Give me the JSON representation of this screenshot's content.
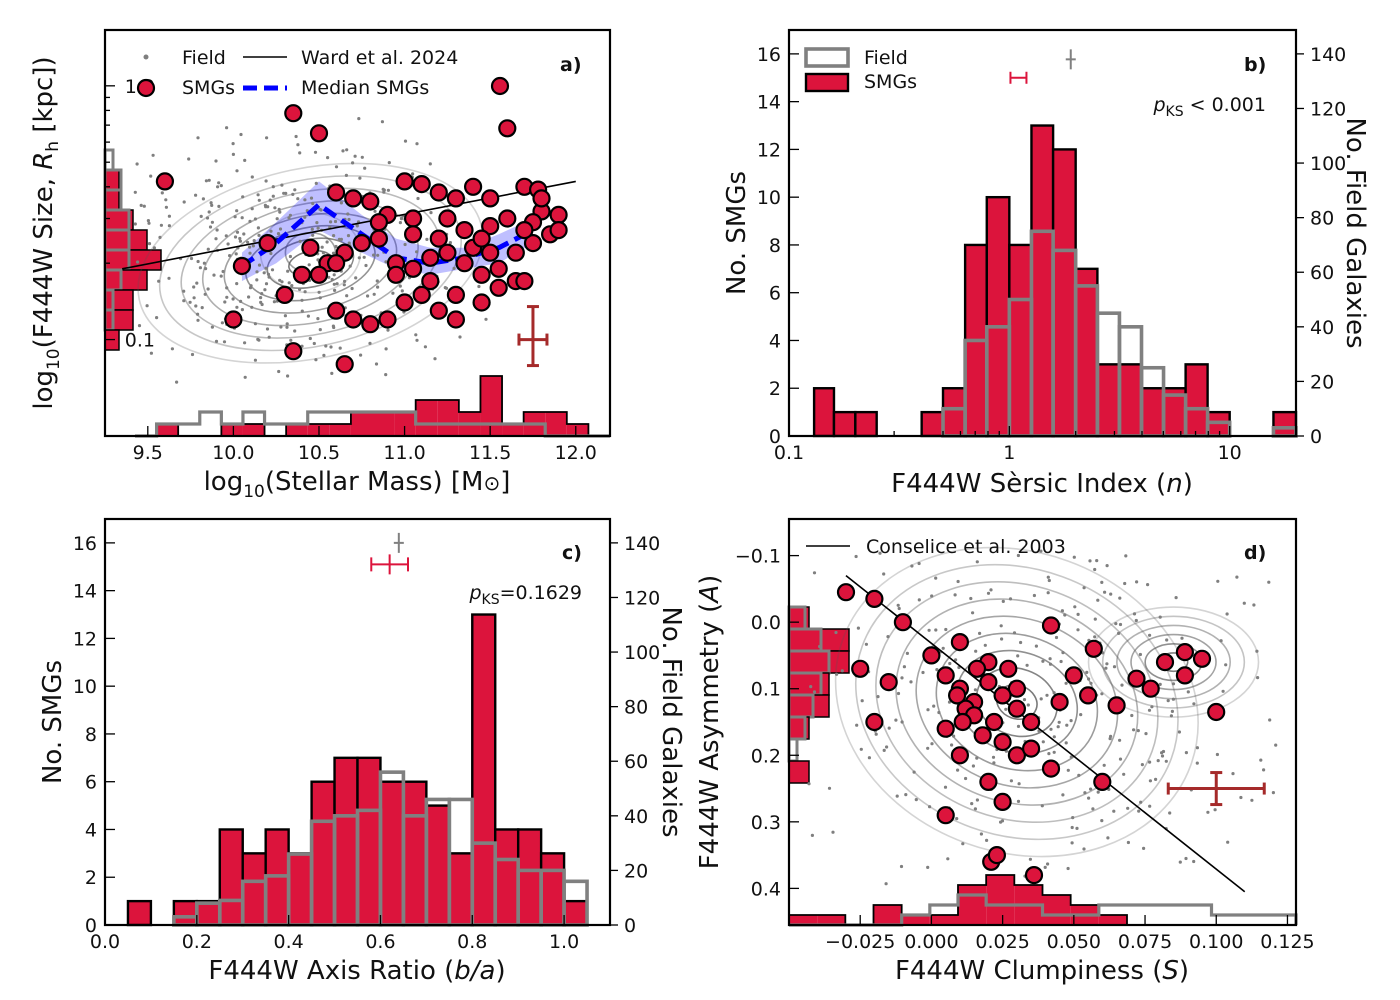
{
  "colors": {
    "smg": "#dc143c",
    "field": "#808080",
    "median": "#0000ff",
    "errbar": "#a52a2a"
  },
  "legend": {
    "field": "Field",
    "smgs": "SMGs",
    "ward": "Ward et al. 2024",
    "median": "Median SMGs",
    "conselice": "Conselice et al. 2003"
  },
  "panels": {
    "a": {
      "id": "a)",
      "xlabel": "log",
      "xlabel_sub": "10",
      "xlabel_rest": "(Stellar Mass) [M",
      "xlabel_end": "]",
      "ylabel": "log",
      "ylabel_sub": "10",
      "ylabel_rest": "(F444W Size, ",
      "ylabel_var": "R",
      "ylabel_var_sub": "h",
      "ylabel_end": " [kpc])",
      "xticks": [
        "9.5",
        "10.0",
        "10.5",
        "11.0",
        "11.5",
        "12.0"
      ],
      "yticks": [
        "0.1",
        "1.0"
      ]
    },
    "b": {
      "id": "b)",
      "xlabel": "F444W Sèrsic Index (",
      "xlabel_var": "n",
      "xlabel_end": ")",
      "ylabel_left": "No. SMGs",
      "ylabel_right": "No. Field Galaxies",
      "pks_p": "p",
      "pks_sub": "KS",
      "pks_val": " < 0.001",
      "xticks": [
        "0.1",
        "1",
        "10"
      ],
      "yticks_left": [
        "0",
        "2",
        "4",
        "6",
        "8",
        "10",
        "12",
        "14",
        "16"
      ],
      "yticks_right": [
        "0",
        "20",
        "40",
        "60",
        "80",
        "100",
        "120",
        "140"
      ]
    },
    "c": {
      "id": "c)",
      "xlabel": "F444W Axis Ratio (",
      "xlabel_var": "b/a",
      "xlabel_end": ")",
      "ylabel_left": "No. SMGs",
      "ylabel_right": "No. Field Galaxies",
      "pks_p": "p",
      "pks_sub": "KS",
      "pks_val": "=0.1629",
      "xticks": [
        "0.0",
        "0.2",
        "0.4",
        "0.6",
        "0.8",
        "1.0"
      ],
      "yticks_left": [
        "0",
        "2",
        "4",
        "6",
        "8",
        "10",
        "12",
        "14",
        "16"
      ],
      "yticks_right": [
        "0",
        "20",
        "40",
        "60",
        "80",
        "100",
        "120",
        "140"
      ]
    },
    "d": {
      "id": "d)",
      "xlabel": "F444W Clumpiness (",
      "xlabel_var": "S",
      "xlabel_end": ")",
      "ylabel": "F444W Asymmetry (",
      "ylabel_var": "A",
      "ylabel_end": ")",
      "xticks": [
        "−0.025",
        "0.000",
        "0.025",
        "0.050",
        "0.075",
        "0.100",
        "0.125"
      ],
      "yticks": [
        "−0.1",
        "0.0",
        "0.1",
        "0.2",
        "0.3",
        "0.4"
      ]
    }
  },
  "chart_data": [
    {
      "panel": "a",
      "type": "scatter",
      "title": "",
      "xlabel": "log10(Stellar Mass) [M⊙]",
      "ylabel": "log10(F444W Size, Rh [kpc])",
      "xlim": [
        9.25,
        12.2
      ],
      "ylim_log10": [
        -1.38,
        0.22
      ],
      "yscale": "log",
      "smgs": [
        [
          10.05,
          0.195
        ],
        [
          10.35,
          0.78
        ],
        [
          10.5,
          0.65
        ],
        [
          10.6,
          0.38
        ],
        [
          10.7,
          0.36
        ],
        [
          10.8,
          0.35
        ],
        [
          10.9,
          0.31
        ],
        [
          11.0,
          0.42
        ],
        [
          11.1,
          0.41
        ],
        [
          11.2,
          0.38
        ],
        [
          11.3,
          0.36
        ],
        [
          11.4,
          0.4
        ],
        [
          11.5,
          0.36
        ],
        [
          11.6,
          0.68
        ],
        [
          11.7,
          0.4
        ],
        [
          11.8,
          0.32
        ],
        [
          11.9,
          0.31
        ],
        [
          10.45,
          0.23
        ],
        [
          10.55,
          0.2
        ],
        [
          10.65,
          0.22
        ],
        [
          10.75,
          0.24
        ],
        [
          10.85,
          0.25
        ],
        [
          10.95,
          0.2
        ],
        [
          11.05,
          0.19
        ],
        [
          11.15,
          0.21
        ],
        [
          11.25,
          0.22
        ],
        [
          11.35,
          0.2
        ],
        [
          11.45,
          0.18
        ],
        [
          11.55,
          0.19
        ],
        [
          11.65,
          0.17
        ],
        [
          11.75,
          0.24
        ],
        [
          11.85,
          0.26
        ],
        [
          10.3,
          0.15
        ],
        [
          10.6,
          0.13
        ],
        [
          10.7,
          0.12
        ],
        [
          10.8,
          0.115
        ],
        [
          10.9,
          0.12
        ],
        [
          11.0,
          0.14
        ],
        [
          11.1,
          0.15
        ],
        [
          11.2,
          0.13
        ],
        [
          11.3,
          0.12
        ],
        [
          11.45,
          0.14
        ],
        [
          11.55,
          0.16
        ],
        [
          11.7,
          0.17
        ],
        [
          10.35,
          0.09
        ],
        [
          10.65,
          0.08
        ],
        [
          9.6,
          0.42
        ],
        [
          10.0,
          0.12
        ],
        [
          10.2,
          0.24
        ],
        [
          10.4,
          0.18
        ],
        [
          10.5,
          0.18
        ],
        [
          10.6,
          0.2
        ],
        [
          10.85,
          0.29
        ],
        [
          11.05,
          0.3
        ],
        [
          11.25,
          0.3
        ],
        [
          11.35,
          0.27
        ],
        [
          11.5,
          0.28
        ],
        [
          11.6,
          0.3
        ],
        [
          11.75,
          0.29
        ],
        [
          11.78,
          0.39
        ],
        [
          11.8,
          0.36
        ],
        [
          11.3,
          0.15
        ],
        [
          11.15,
          0.17
        ],
        [
          10.95,
          0.18
        ],
        [
          11.05,
          0.26
        ],
        [
          11.2,
          0.25
        ],
        [
          11.4,
          0.23
        ],
        [
          11.45,
          0.25
        ],
        [
          11.5,
          0.22
        ],
        [
          11.65,
          0.22
        ],
        [
          11.7,
          0.27
        ],
        [
          11.9,
          0.27
        ]
      ],
      "field_points": [
        [
          10.1,
          0.24
        ],
        [
          10.3,
          0.3
        ],
        [
          10.5,
          0.2
        ],
        [
          10.7,
          0.25
        ],
        [
          10.9,
          0.22
        ],
        [
          11.1,
          0.2
        ],
        [
          10.2,
          0.18
        ],
        [
          10.4,
          0.15
        ],
        [
          10.6,
          0.28
        ],
        [
          10.8,
          0.18
        ]
      ],
      "ward_line": {
        "x": [
          9.35,
          12.0
        ],
        "y": [
          0.19,
          0.42
        ]
      },
      "median_smgs": {
        "x": [
          10.05,
          10.25,
          10.5,
          10.75,
          10.95,
          11.15,
          11.35,
          11.55,
          11.75
        ],
        "y": [
          0.195,
          0.24,
          0.34,
          0.26,
          0.21,
          0.2,
          0.21,
          0.23,
          0.27
        ],
        "lo": [
          0.17,
          0.2,
          0.27,
          0.22,
          0.19,
          0.18,
          0.19,
          0.2,
          0.24
        ],
        "hi": [
          0.22,
          0.29,
          0.42,
          0.31,
          0.25,
          0.23,
          0.23,
          0.26,
          0.3
        ]
      },
      "error_bar": {
        "x": 11.75,
        "y": 0.1
      },
      "x_hist_smg_counts": [
        0,
        1,
        0,
        0,
        1,
        1,
        0,
        1,
        1,
        1,
        2,
        2,
        2,
        3,
        3,
        2,
        5,
        1,
        2,
        2,
        1,
        0
      ],
      "x_hist_field_counts": [
        0,
        1,
        1,
        2,
        1,
        2,
        1,
        1,
        2,
        2,
        2,
        2,
        2,
        1,
        1,
        1,
        1,
        1,
        1,
        0,
        0,
        0
      ],
      "y_hist_smg_counts": [
        0,
        1,
        1,
        2,
        3,
        4,
        3,
        2,
        2,
        1,
        0
      ],
      "y_hist_field_counts": [
        1,
        2,
        2,
        3,
        3,
        3,
        2,
        1,
        1,
        0,
        0
      ]
    },
    {
      "panel": "b",
      "type": "bar",
      "title": "",
      "xlabel": "F444W Sèrsic Index (n)",
      "xscale": "log",
      "xlim": [
        0.1,
        20
      ],
      "ylim_left": [
        0,
        17
      ],
      "ylim_right": [
        0,
        148.75
      ],
      "bin_edges": [
        0.13,
        0.16,
        0.2,
        0.25,
        0.32,
        0.4,
        0.5,
        0.63,
        0.79,
        1.0,
        1.26,
        1.58,
        2.0,
        2.51,
        3.16,
        3.98,
        5.01,
        6.31,
        7.94,
        10.0,
        12.6,
        15.8,
        20.0
      ],
      "smgs_counts": [
        2,
        1,
        1,
        0,
        0,
        1,
        2,
        8,
        10,
        8,
        13,
        12,
        7,
        3,
        3,
        2,
        2,
        3,
        1,
        0,
        0,
        1
      ],
      "field_counts": [
        0,
        0,
        0,
        0,
        0,
        0,
        10,
        35,
        40,
        50,
        75,
        68,
        55,
        45,
        40,
        25,
        15,
        10,
        5,
        0,
        0,
        3
      ],
      "smg_error": {
        "x": 1.1,
        "y": 15,
        "xerr": 0.12
      },
      "field_error": {
        "x": 1.9,
        "y": 138,
        "yerr": 4
      }
    },
    {
      "panel": "c",
      "type": "bar",
      "title": "",
      "xlabel": "F444W Axis Ratio (b/a)",
      "xlim": [
        0,
        1.1
      ],
      "ylim_left": [
        0,
        17
      ],
      "ylim_right": [
        0,
        148.75
      ],
      "bin_edges": [
        0.0,
        0.05,
        0.1,
        0.15,
        0.2,
        0.25,
        0.3,
        0.35,
        0.4,
        0.45,
        0.5,
        0.55,
        0.6,
        0.65,
        0.7,
        0.75,
        0.8,
        0.85,
        0.9,
        0.95,
        1.0,
        1.05
      ],
      "smgs_counts": [
        0,
        1,
        0,
        1,
        1,
        4,
        3,
        4,
        3,
        6,
        7,
        7,
        6,
        6,
        5,
        3,
        13,
        4,
        4,
        3,
        1
      ],
      "field_counts": [
        0,
        0,
        0,
        3,
        8,
        9,
        16,
        18,
        26,
        38,
        40,
        42,
        56,
        40,
        46,
        46,
        30,
        24,
        20,
        20,
        16
      ],
      "smg_error": {
        "x": 0.62,
        "y": 15.1,
        "xerr": 0.04
      },
      "field_error": {
        "x": 0.64,
        "y": 140,
        "yerr": 3
      }
    },
    {
      "panel": "d",
      "type": "scatter",
      "title": "",
      "xlabel": "F444W Clumpiness (S)",
      "ylabel": "F444W Asymmetry (A)",
      "xlim": [
        -0.05,
        0.128
      ],
      "ylim": [
        0.455,
        -0.155
      ],
      "y_inverted": true,
      "smgs": [
        [
          -0.03,
          -0.045
        ],
        [
          -0.02,
          -0.035
        ],
        [
          -0.01,
          0.0
        ],
        [
          0.0,
          0.05
        ],
        [
          0.01,
          0.03
        ],
        [
          0.02,
          0.06
        ],
        [
          0.03,
          0.1
        ],
        [
          0.035,
          0.15
        ],
        [
          0.042,
          0.005
        ],
        [
          0.057,
          0.04
        ],
        [
          0.072,
          0.085
        ],
        [
          0.082,
          0.06
        ],
        [
          0.089,
          0.045
        ],
        [
          0.095,
          0.055
        ],
        [
          0.1,
          0.135
        ],
        [
          0.077,
          0.1
        ],
        [
          0.089,
          0.08
        ],
        [
          0.055,
          0.11
        ],
        [
          0.05,
          0.08
        ],
        [
          0.065,
          0.125
        ],
        [
          0.02,
          0.24
        ],
        [
          0.01,
          0.2
        ],
        [
          0.005,
          0.16
        ],
        [
          0.015,
          0.12
        ],
        [
          0.025,
          0.18
        ],
        [
          0.03,
          0.2
        ],
        [
          0.035,
          0.19
        ],
        [
          0.005,
          0.29
        ],
        [
          0.025,
          0.27
        ],
        [
          0.042,
          0.22
        ],
        [
          0.021,
          0.36
        ],
        [
          0.036,
          0.38
        ],
        [
          -0.025,
          0.07
        ],
        [
          -0.02,
          0.15
        ],
        [
          -0.015,
          0.09
        ],
        [
          0.005,
          0.08
        ],
        [
          0.01,
          0.1
        ],
        [
          0.012,
          0.13
        ],
        [
          0.015,
          0.14
        ],
        [
          0.02,
          0.09
        ],
        [
          0.025,
          0.11
        ],
        [
          0.027,
          0.07
        ],
        [
          0.03,
          0.13
        ],
        [
          0.016,
          0.07
        ],
        [
          0.009,
          0.11
        ],
        [
          0.011,
          0.15
        ],
        [
          0.018,
          0.17
        ],
        [
          0.022,
          0.15
        ],
        [
          0.023,
          0.35
        ],
        [
          0.06,
          0.24
        ],
        [
          0.045,
          0.12
        ]
      ],
      "conselice_line": {
        "x": [
          -0.03,
          0.11
        ],
        "y": [
          -0.07,
          0.405
        ]
      },
      "error_bar": {
        "x": 0.1,
        "y": 0.25
      },
      "x_hist_smg_counts": [
        1,
        1,
        0,
        2,
        1,
        1,
        4,
        5,
        4,
        3,
        2,
        1,
        0,
        0,
        0,
        0,
        0,
        0
      ],
      "x_hist_field_counts": [
        0,
        0,
        0,
        0,
        1,
        2,
        3,
        2,
        2,
        1,
        1,
        2,
        2,
        2,
        2,
        1,
        1,
        1
      ],
      "y_hist_smg_counts": [
        0,
        1,
        3,
        3,
        2,
        2,
        1,
        0,
        1,
        0
      ],
      "y_hist_field_counts": [
        0,
        2,
        4,
        5,
        4,
        3,
        2,
        1,
        0,
        0
      ]
    }
  ]
}
